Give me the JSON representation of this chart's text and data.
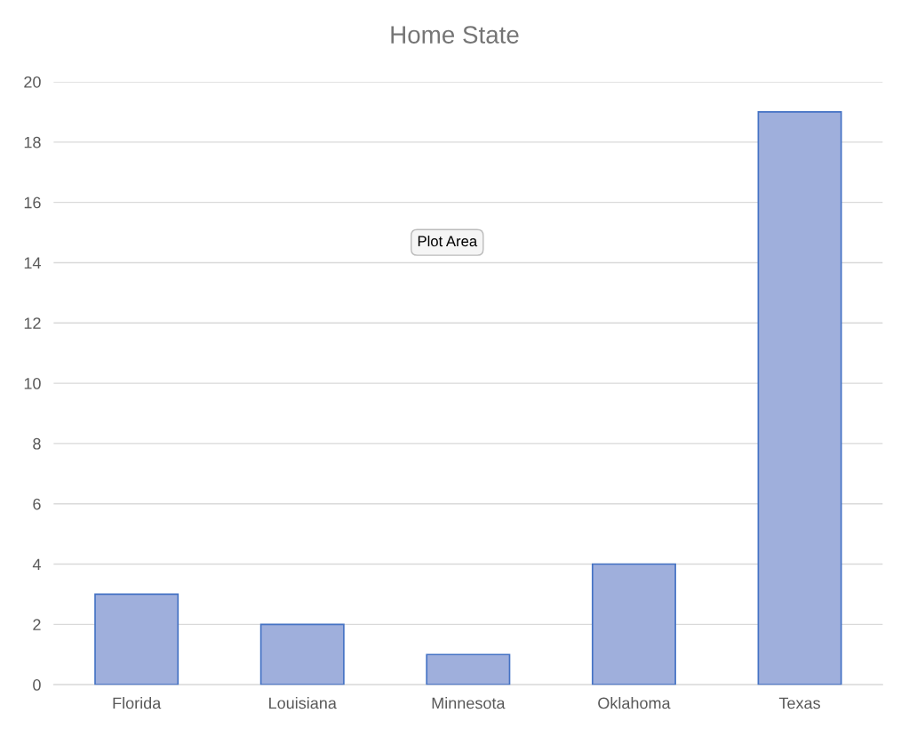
{
  "chart_data": {
    "type": "bar",
    "title": "Home State",
    "categories": [
      "Florida",
      "Louisiana",
      "Minnesota",
      "Oklahoma",
      "Texas"
    ],
    "values": [
      3,
      2,
      1,
      4,
      19
    ],
    "color": "#9fafdc",
    "ylim": [
      0,
      20
    ],
    "yticks": [
      0,
      2,
      4,
      6,
      8,
      10,
      12,
      14,
      16,
      18,
      20
    ],
    "grid": "y",
    "annotations": [
      "Plot Area"
    ]
  }
}
